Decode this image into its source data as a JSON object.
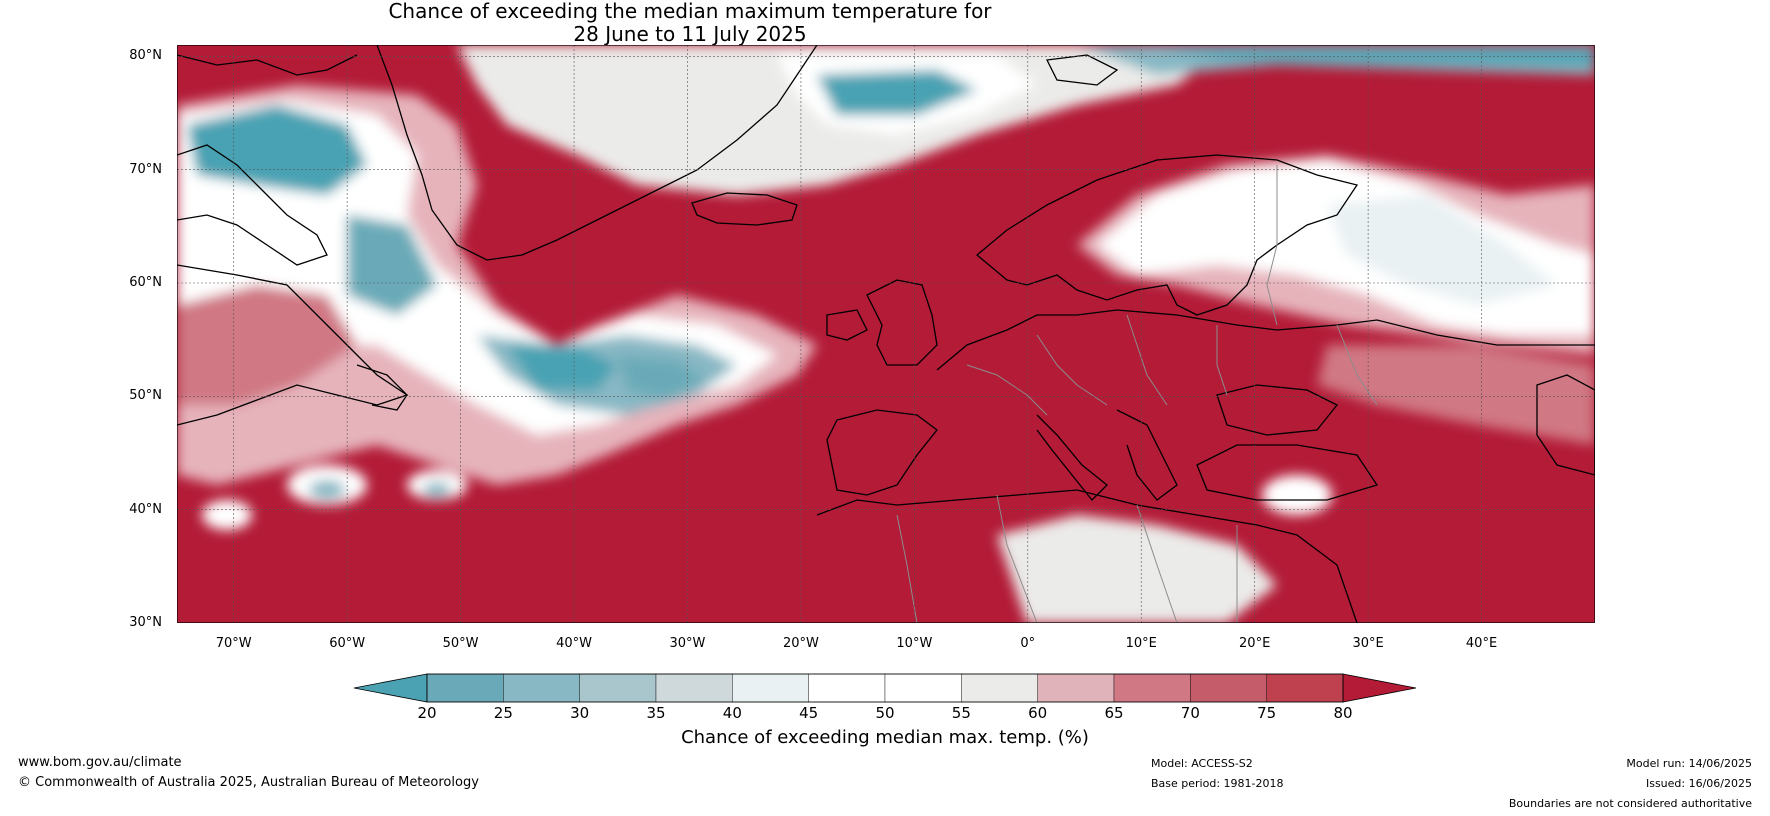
{
  "title": {
    "line1": "Chance of exceeding the median maximum temperature for",
    "line2": "28 June to 11 July 2025"
  },
  "map": {
    "lon_range": [
      -75,
      50
    ],
    "lat_range": [
      30,
      81
    ],
    "lat_ticks": [
      "80°N",
      "70°N",
      "60°N",
      "50°N",
      "40°N",
      "30°N"
    ],
    "lon_ticks": [
      "70°W",
      "60°W",
      "50°W",
      "40°W",
      "30°W",
      "20°W",
      "10°W",
      "0°",
      "10°E",
      "20°E",
      "30°E",
      "40°E"
    ],
    "colors": {
      "ocean_background": "#b31b37",
      "land_outline": "#000000",
      "country_border": "#8c8c8c"
    }
  },
  "colorbar": {
    "ticks": [
      "20",
      "25",
      "30",
      "35",
      "40",
      "45",
      "50",
      "55",
      "60",
      "65",
      "70",
      "75",
      "80"
    ],
    "colors": [
      "#4aa2b3",
      "#6aaab8",
      "#88b8c4",
      "#a8c6cc",
      "#cfd8da",
      "#e9f1f3",
      "#ffffff",
      "#ffffff",
      "#ebebe9",
      "#e0b2ba",
      "#d07884",
      "#c45c6a",
      "#bf404e",
      "#b31b37"
    ],
    "title": "Chance of exceeding median max. temp. (%)"
  },
  "footer": {
    "website": "www.bom.gov.au/climate",
    "copyright": "© Commonwealth of Australia 2025, Australian Bureau of Meteorology",
    "model": "Model: ACCESS-S2",
    "base_period": "Base period: 1981-2018",
    "model_run": "Model run: 14/06/2025",
    "issued": "Issued: 16/06/2025",
    "boundaries": "Boundaries are not considered authoritative"
  }
}
